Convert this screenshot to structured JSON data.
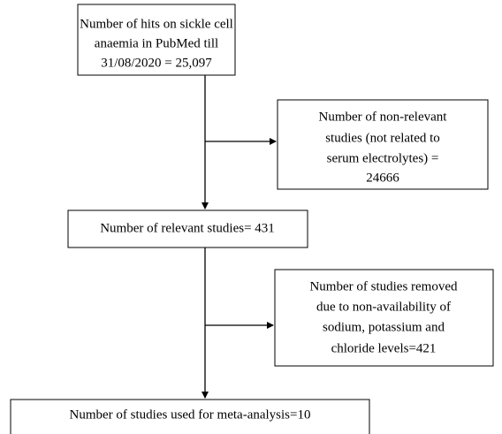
{
  "nodes": [
    {
      "lines": [
        "Number of hits on sickle cell",
        "anaemia in PubMed till",
        "31/08/2020 = 25,097"
      ]
    },
    {
      "lines": [
        "Number of non-relevant",
        "studies (not related to",
        "serum electrolytes) =",
        "24666"
      ]
    },
    {
      "lines": [
        "Number of relevant studies= 431"
      ]
    },
    {
      "lines": [
        "Number of studies removed",
        "due to non-availability of",
        "sodium, potassium and",
        "chloride levels=421"
      ]
    },
    {
      "lines": [
        "Number of studies used for meta-analysis=10"
      ]
    }
  ]
}
